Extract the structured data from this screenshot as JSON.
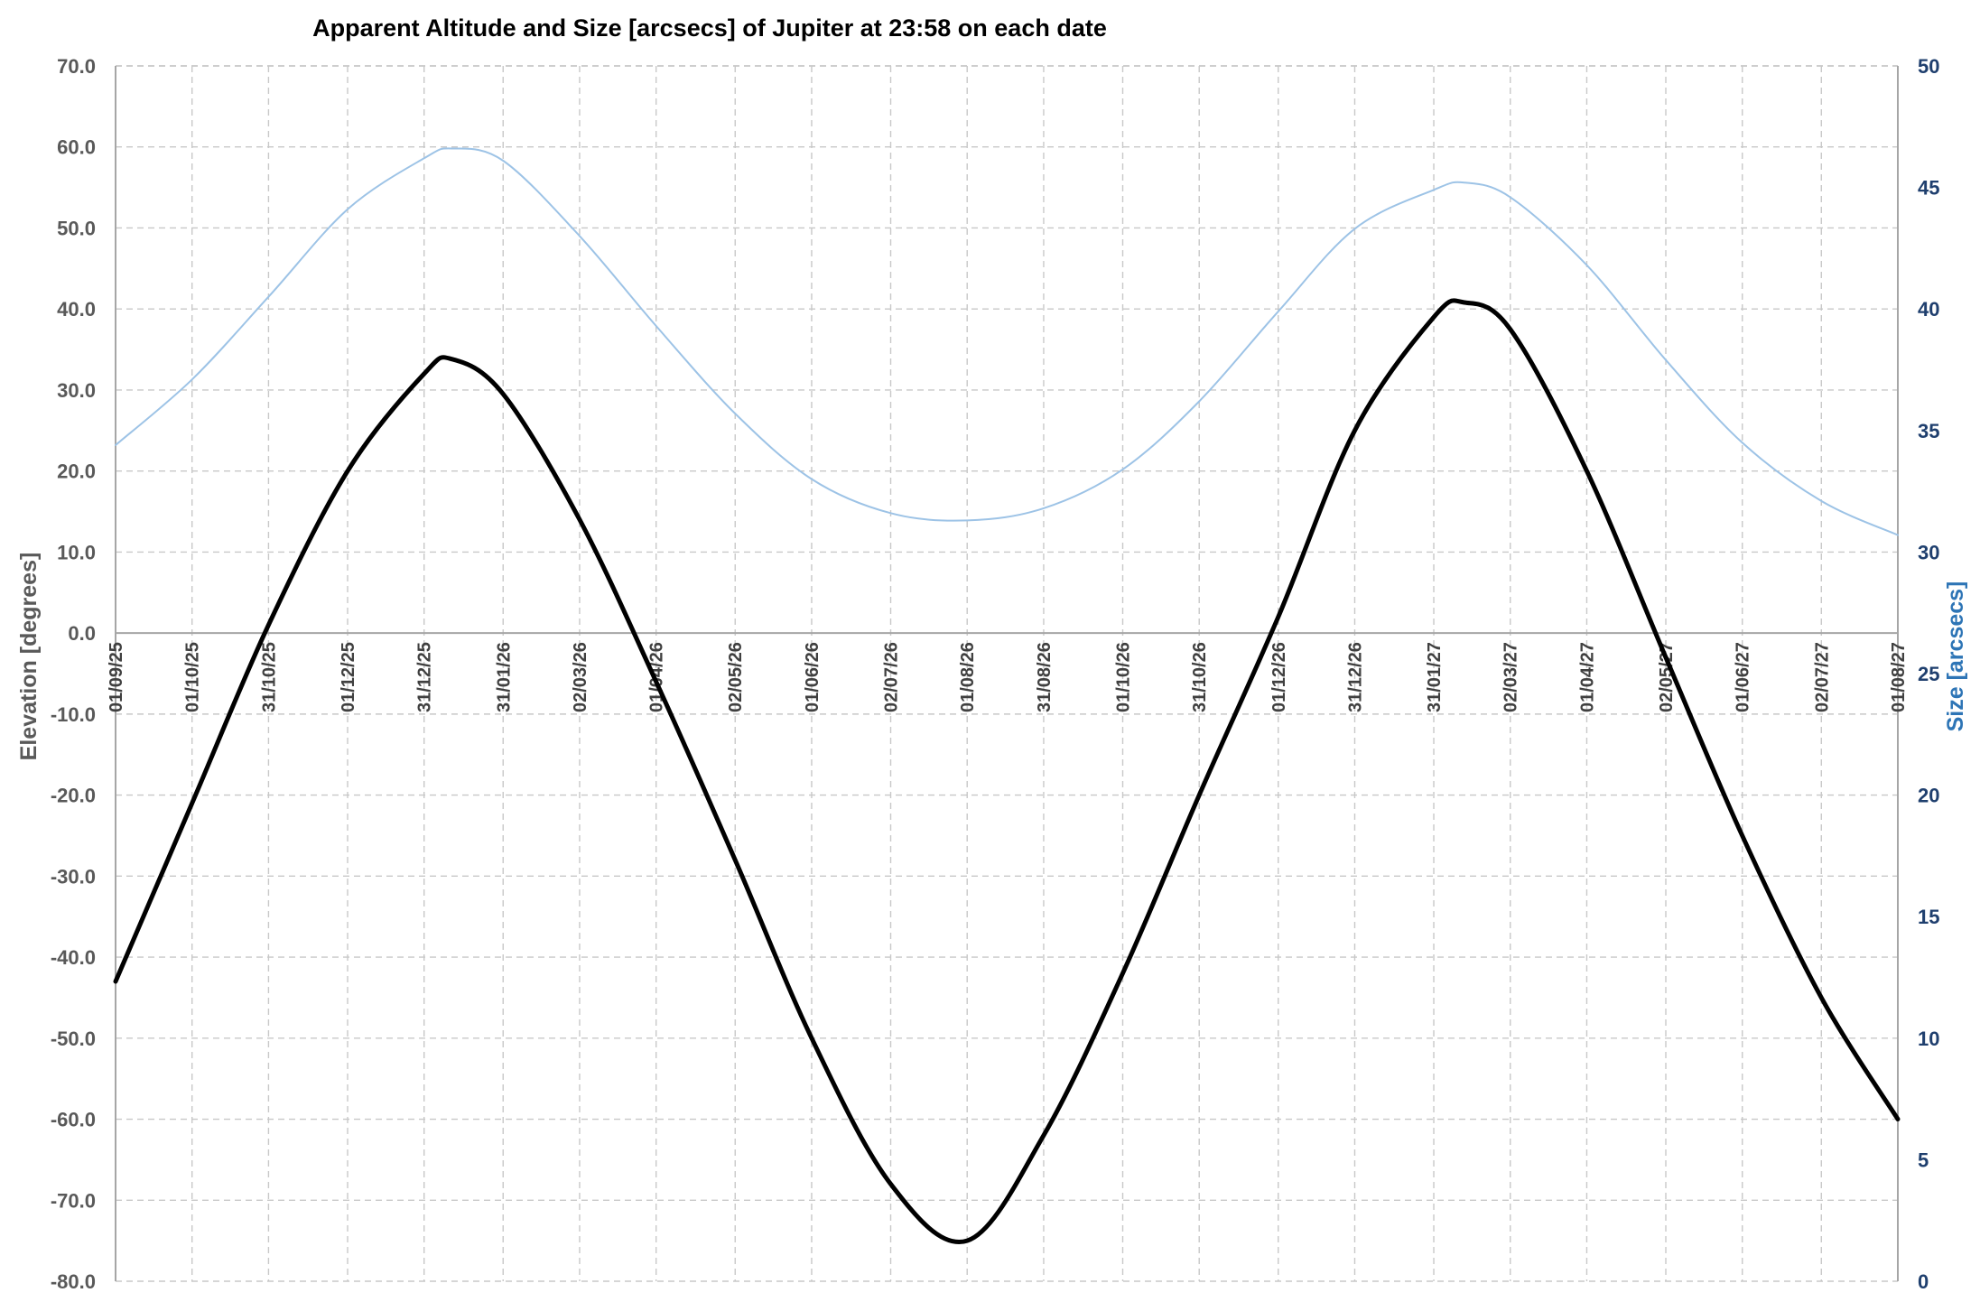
{
  "chart_data": {
    "type": "line",
    "title": "Apparent Altitude and Size [arcsecs] of Jupiter at 23:58 on each date",
    "ylabel": "Elevation [degrees]",
    "y2label": "Size [arcsecs]",
    "ylim": [
      -80,
      70
    ],
    "y2lim": [
      0,
      50
    ],
    "grid": true,
    "x_tick_labels": [
      "01/09/25",
      "01/10/25",
      "31/10/25",
      "01/12/25",
      "31/12/25",
      "31/01/26",
      "02/03/26",
      "01/04/26",
      "02/05/26",
      "01/06/26",
      "02/07/26",
      "01/08/26",
      "31/08/26",
      "01/10/26",
      "31/10/26",
      "01/12/26",
      "31/12/26",
      "31/01/27",
      "02/03/27",
      "01/04/27",
      "02/05/27",
      "01/06/27",
      "02/07/27",
      "01/08/27"
    ],
    "y_tick_labels": [
      "70.0",
      "60.0",
      "50.0",
      "40.0",
      "30.0",
      "20.0",
      "10.0",
      "0.0",
      "-10.0",
      "-20.0",
      "-30.0",
      "-40.0",
      "-50.0",
      "-60.0",
      "-70.0",
      "-80.0"
    ],
    "y2_tick_labels": [
      "50",
      "45",
      "40",
      "35",
      "30",
      "25",
      "20",
      "15",
      "10",
      "5",
      "0"
    ],
    "series": [
      {
        "axis": "left",
        "color": "#000000",
        "x": [
          "01/09/25",
          "01/10/25",
          "31/10/25",
          "01/12/25",
          "31/12/25",
          "11/01/26",
          "31/01/26",
          "02/03/26",
          "01/04/26",
          "02/05/26",
          "01/06/26",
          "02/07/26",
          "01/08/26",
          "31/08/26",
          "01/10/26",
          "31/10/26",
          "01/12/26",
          "31/12/26",
          "31/01/27",
          "12/02/27",
          "02/03/27",
          "01/04/27",
          "02/05/27",
          "01/06/27",
          "02/07/27",
          "01/08/27"
        ],
        "values": [
          -43.0,
          -21.0,
          1.0,
          20.0,
          32.0,
          33.8,
          29.5,
          14.0,
          -6.0,
          -28.0,
          -50.0,
          -68.0,
          -75.0,
          -62.0,
          -42.0,
          -20.0,
          2.0,
          25.0,
          39.0,
          40.8,
          37.5,
          20.0,
          -3.0,
          -25.0,
          -45.0,
          -60.0
        ]
      },
      {
        "axis": "right",
        "color": "#9dc3e6",
        "x": [
          "01/09/25",
          "01/10/25",
          "31/10/25",
          "01/12/25",
          "31/12/25",
          "11/01/26",
          "31/01/26",
          "02/03/26",
          "01/04/26",
          "02/05/26",
          "01/06/26",
          "02/07/26",
          "01/08/26",
          "31/08/26",
          "01/10/26",
          "31/10/26",
          "01/12/26",
          "31/12/26",
          "31/01/27",
          "12/02/27",
          "02/03/27",
          "01/04/27",
          "02/05/27",
          "01/06/27",
          "02/07/27",
          "01/08/27"
        ],
        "values": [
          34.4,
          37.1,
          40.5,
          44.1,
          46.2,
          46.6,
          46.1,
          43.0,
          39.3,
          35.7,
          33.0,
          31.6,
          31.3,
          31.8,
          33.4,
          36.2,
          39.9,
          43.3,
          44.9,
          45.2,
          44.6,
          41.8,
          37.9,
          34.5,
          32.1,
          30.7
        ]
      }
    ]
  }
}
